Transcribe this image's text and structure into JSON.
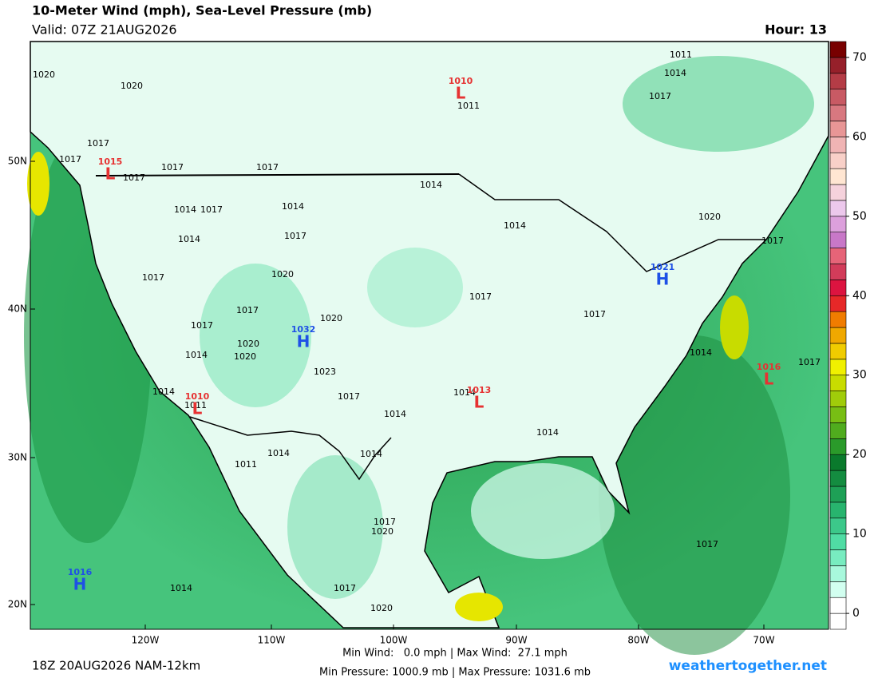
{
  "header": {
    "title": "10-Meter Wind (mph), Sea-Level Pressure (mb)",
    "valid": "Valid: 07Z 21AUG2026",
    "hour": "Hour: 13"
  },
  "map": {
    "lat_labels": [
      "50N",
      "40N",
      "30N",
      "20N"
    ],
    "lon_labels": [
      "120W",
      "110W",
      "100W",
      "90W",
      "80W",
      "70W"
    ],
    "isobar_labels": [
      1020,
      1020,
      1017,
      1017,
      1017,
      1017,
      1017,
      1014,
      1017,
      1014,
      1014,
      1017,
      1014,
      1014,
      1020,
      1017,
      1017,
      1020,
      1017,
      1017,
      1020,
      1020,
      1014,
      1020,
      1023,
      1017,
      1014,
      1011,
      1014,
      1014,
      1017,
      1017,
      1014,
      1014,
      1011,
      1014,
      1014,
      1017,
      1020,
      1017,
      1014,
      1017,
      1020,
      1011,
      1014,
      1017,
      1011,
      1017
    ],
    "pressure_centers": [
      {
        "letter": "L",
        "value": 1010
      },
      {
        "letter": "L",
        "value": 1015
      },
      {
        "letter": "L",
        "value": 1010
      },
      {
        "letter": "L",
        "value": 1013
      },
      {
        "letter": "L",
        "value": 1016
      },
      {
        "letter": "H",
        "value": 1021
      },
      {
        "letter": "H",
        "value": 1032
      },
      {
        "letter": "H",
        "value": 1016
      }
    ]
  },
  "colorbar": {
    "lim": [
      -2,
      72
    ],
    "ticks": [
      0,
      10,
      20,
      30,
      40,
      50,
      60,
      70
    ],
    "colors": [
      "#ffffff",
      "#ffffff",
      "#d2fff0",
      "#a8f8dc",
      "#78ecc0",
      "#50dca4",
      "#3cc88a",
      "#28b46e",
      "#1ea056",
      "#148c40",
      "#0a7a2c",
      "#2a9a2a",
      "#50ac1e",
      "#78be14",
      "#a0cc0a",
      "#c8dc00",
      "#f0f000",
      "#f0cc00",
      "#f0a800",
      "#f07c00",
      "#e62828",
      "#dc1440",
      "#d23c5a",
      "#e66478",
      "#c878c8",
      "#dca0dc",
      "#ecc8ec",
      "#f5d2dc",
      "#ffe6d2",
      "#f8d0c8",
      "#f0b4b4",
      "#e89696",
      "#d87880",
      "#c85a64",
      "#b43c46",
      "#96202a",
      "#780000"
    ]
  },
  "footer": {
    "run": "18Z 20AUG2026 NAM-12km",
    "wind_stats": "Min Wind:   0.0 mph | Max Wind:  27.1 mph",
    "pressure_stats": "Min Pressure: 1000.9 mb | Max Pressure: 1031.6 mb",
    "site": "weathertogether.net"
  }
}
